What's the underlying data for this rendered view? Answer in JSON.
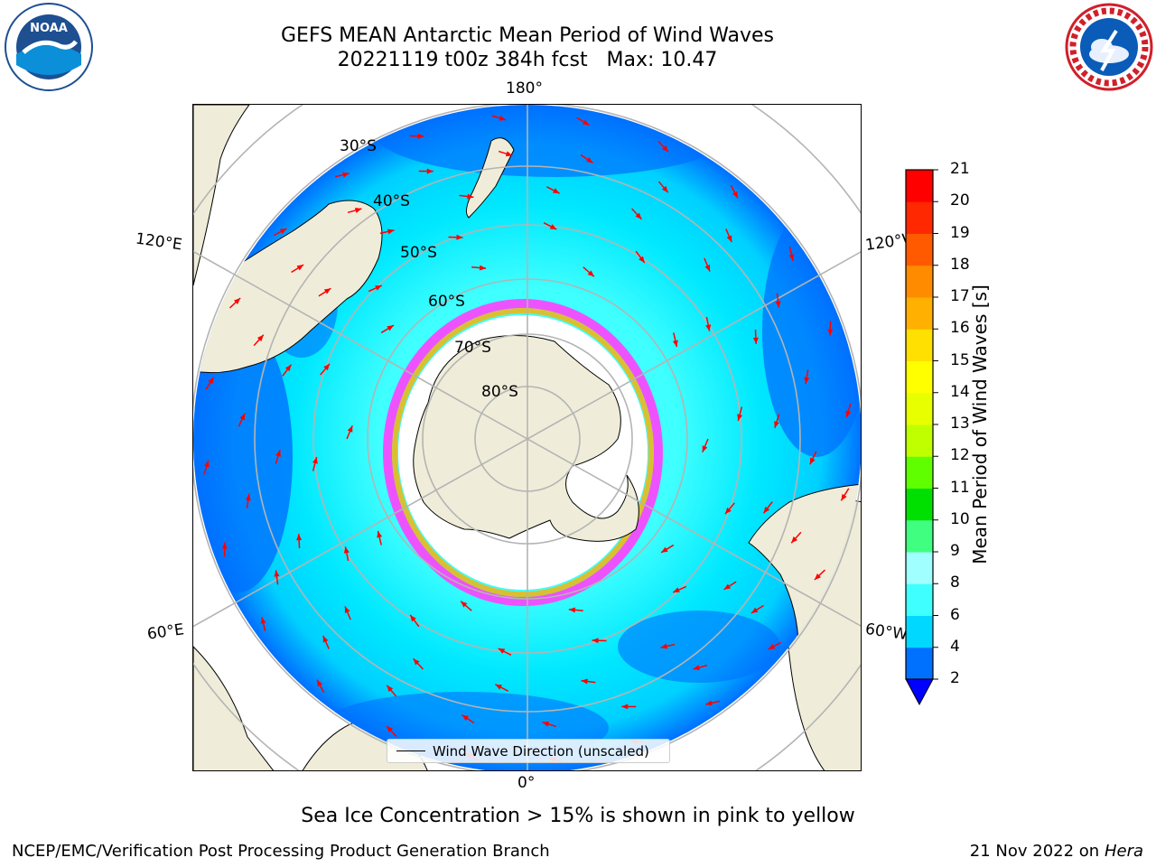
{
  "title_line1": "GEFS MEAN Antarctic Mean Period of Wind Waves",
  "title_line2": "20221119 t00z 384h fcst   Max: 10.47",
  "logos": {
    "left": "noaa-logo",
    "right": "nws-logo"
  },
  "lon_labels": {
    "top": "180°",
    "upper_left": "120°E",
    "upper_right": "120°W",
    "lower_left": "60°E",
    "lower_right": "60°W",
    "bottom": "0°"
  },
  "lat_labels": [
    "30°S",
    "40°S",
    "50°S",
    "60°S",
    "70°S",
    "80°S"
  ],
  "legend": {
    "label": "Wind Wave Direction (unscaled)"
  },
  "colorbar": {
    "label": "Mean Period of Wind Waves [s]",
    "ticks": [
      "2",
      "4",
      "6",
      "8",
      "9",
      "10",
      "11",
      "12",
      "13",
      "14",
      "15",
      "16",
      "17",
      "18",
      "19",
      "20",
      "21"
    ],
    "colors": [
      "#0070ff",
      "#00d8ff",
      "#40ffff",
      "#a0ffff",
      "#40ff80",
      "#00e000",
      "#60ff00",
      "#c0ff00",
      "#e8ff00",
      "#ffff00",
      "#ffe000",
      "#ffb000",
      "#ff8c00",
      "#ff5a00",
      "#ff2800",
      "#ff0000"
    ],
    "under_color": "#0000ff"
  },
  "ice_note": "Sea Ice Concentration > 15% is shown in pink to yellow",
  "footer_left": "NCEP/EMC/Verification Post Processing Product Generation Branch",
  "footer_right_date": "21 Nov 2022 on",
  "footer_right_host": "Hera",
  "colors": {
    "land": "#efedd9",
    "ocean_dark": "#0070ff",
    "ocean_mid": "#00e8ff",
    "ocean_light": "#40ffff",
    "ice_edge": "#ff40ff",
    "ice_edge2": "#ffb000",
    "arrow": "#ff0000",
    "grid": "#b4b4b4"
  }
}
